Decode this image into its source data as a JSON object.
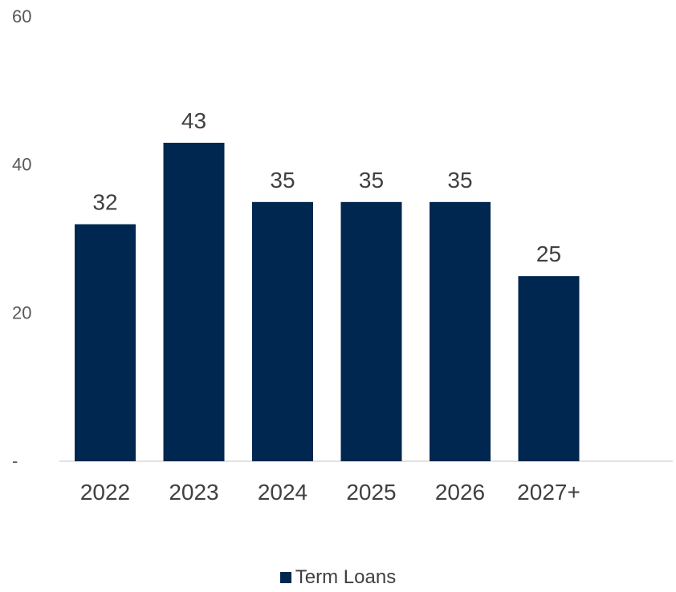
{
  "chart_data": {
    "type": "bar",
    "categories": [
      "2022",
      "2023",
      "2024",
      "2025",
      "2026",
      "2027+"
    ],
    "series": [
      {
        "name": "Term Loans",
        "values": [
          32,
          43,
          35,
          35,
          35,
          25
        ]
      }
    ],
    "data_labels": [
      "32",
      "43",
      "35",
      "35",
      "35",
      "25"
    ],
    "yticks": [
      {
        "value": 0,
        "label": "-"
      },
      {
        "value": 20,
        "label": "20"
      },
      {
        "value": 40,
        "label": "40"
      },
      {
        "value": 60,
        "label": "60"
      }
    ],
    "ylim": [
      0,
      60
    ],
    "grid": false,
    "legend_position": "bottom",
    "bar_color": "#00274f"
  }
}
